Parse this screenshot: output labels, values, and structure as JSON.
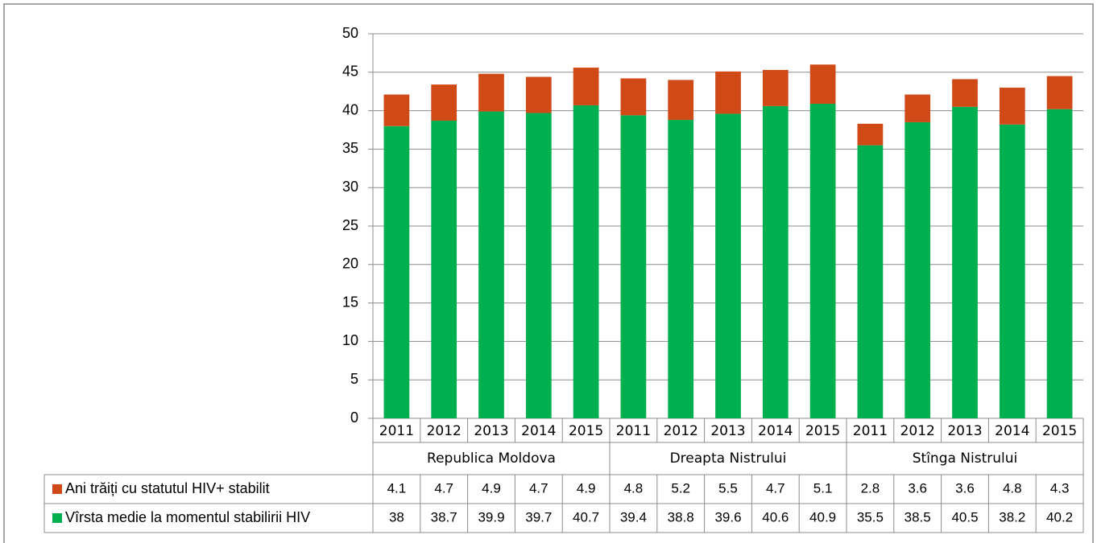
{
  "chart_data": {
    "type": "stacked_bar",
    "categories": [
      "2011",
      "2012",
      "2013",
      "2014",
      "2015",
      "2011",
      "2012",
      "2013",
      "2014",
      "2015",
      "2011",
      "2012",
      "2013",
      "2014",
      "2015"
    ],
    "groups": [
      "Republica Moldova",
      "Dreapta Nistrului",
      "Stînga Nistrului"
    ],
    "series": [
      {
        "name": "Vîrsta medie la momentul stabilirii HIV",
        "color": "#00b050",
        "values": [
          38,
          38.7,
          39.9,
          39.7,
          40.7,
          39.4,
          38.8,
          39.6,
          40.6,
          40.9,
          35.5,
          38.5,
          40.5,
          38.2,
          40.2
        ]
      },
      {
        "name": "Ani trăiți cu statutul HIV+ stabilit",
        "color": "#d04a17",
        "values": [
          4.1,
          4.7,
          4.9,
          4.7,
          4.9,
          4.8,
          5.2,
          5.5,
          4.7,
          5.1,
          2.8,
          3.6,
          3.6,
          4.8,
          4.3
        ]
      }
    ],
    "ylim": [
      0,
      50
    ],
    "yticks": [
      0,
      5,
      10,
      15,
      20,
      25,
      30,
      35,
      40,
      45,
      50
    ],
    "grid": true
  }
}
